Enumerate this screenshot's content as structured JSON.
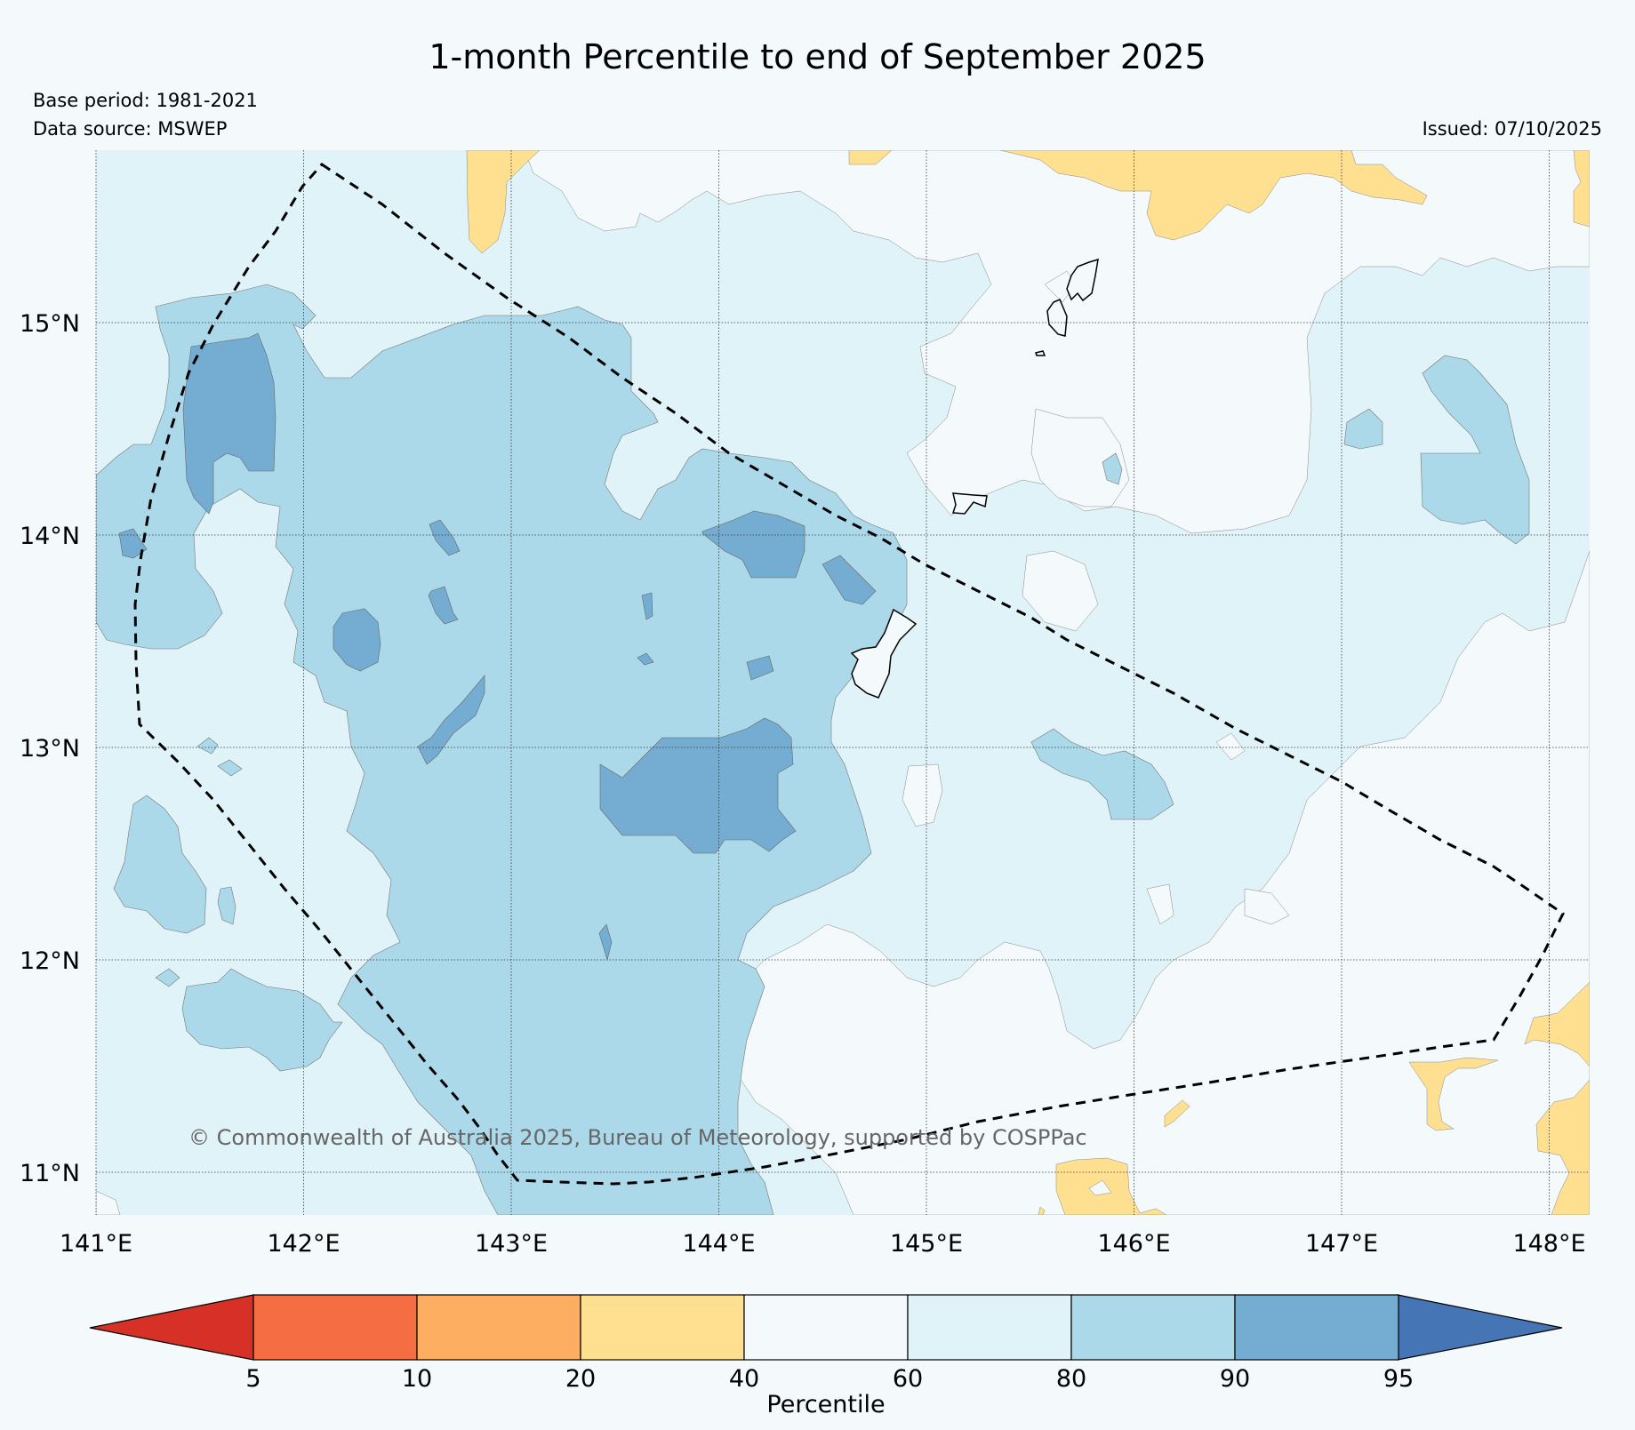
{
  "title": "1-month Percentile to end of September 2025",
  "base_period": "Base period: 1981-2021",
  "data_source": "Data source: MSWEP",
  "issued": "Issued: 07/10/2025",
  "credit": "© Commonwealth of Australia 2025, Bureau of Meteorology, supported by COSPPac",
  "map": {
    "lon_range": [
      141.0,
      148.2
    ],
    "lat_range": [
      10.8,
      15.82
    ],
    "lon_ticks": [
      141,
      142,
      143,
      144,
      145,
      146,
      147,
      148
    ],
    "lon_labels": [
      "141°E",
      "142°E",
      "143°E",
      "144°E",
      "145°E",
      "146°E",
      "147°E",
      "148°E"
    ],
    "lat_ticks": [
      11,
      12,
      13,
      14,
      15
    ],
    "lat_labels": [
      "11°N",
      "12°N",
      "13°N",
      "14°N",
      "15°N"
    ],
    "gridlines": true,
    "boundary_line": "dashed"
  },
  "colorbar": {
    "label": "Percentile",
    "tick_labels": [
      "5",
      "10",
      "20",
      "40",
      "60",
      "80",
      "90",
      "95"
    ],
    "below_color": "#d73027",
    "above_color": "#4575b4",
    "bins": [
      {
        "range": "5-10",
        "color": "#f46d43"
      },
      {
        "range": "10-20",
        "color": "#fdae61"
      },
      {
        "range": "20-40",
        "color": "#fee090"
      },
      {
        "range": "40-60",
        "color": "#f4fafc"
      },
      {
        "range": "60-80",
        "color": "#e0f3f8"
      },
      {
        "range": "80-90",
        "color": "#abd9e9"
      },
      {
        "range": "90-95",
        "color": "#74add1"
      }
    ]
  }
}
